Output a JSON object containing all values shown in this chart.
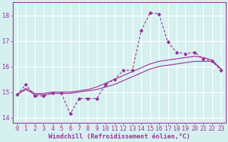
{
  "xlabel": "Windchill (Refroidissement éolien,°C)",
  "background_color": "#d6f0f0",
  "grid_color": "#ffffff",
  "line_color": "#993399",
  "xlim": [
    -0.5,
    23.5
  ],
  "ylim": [
    13.8,
    18.5
  ],
  "yticks": [
    14,
    15,
    16,
    17,
    18
  ],
  "xticks": [
    0,
    1,
    2,
    3,
    4,
    5,
    6,
    7,
    8,
    9,
    10,
    11,
    12,
    13,
    14,
    15,
    16,
    17,
    18,
    19,
    20,
    21,
    22,
    23
  ],
  "y_main": [
    14.9,
    15.3,
    14.85,
    14.85,
    14.95,
    14.95,
    14.15,
    14.75,
    14.75,
    14.75,
    15.3,
    15.5,
    15.85,
    15.85,
    17.4,
    18.1,
    18.05,
    16.95,
    16.55,
    16.5,
    16.55,
    16.3,
    16.2,
    15.85
  ],
  "y_trend1": [
    14.9,
    15.1,
    14.9,
    14.9,
    14.95,
    14.95,
    14.95,
    15.0,
    15.05,
    15.1,
    15.2,
    15.3,
    15.45,
    15.6,
    15.75,
    15.9,
    16.0,
    16.05,
    16.1,
    16.15,
    16.2,
    16.2,
    16.2,
    15.9
  ],
  "y_trend2": [
    14.9,
    15.15,
    14.95,
    14.95,
    15.0,
    15.0,
    15.0,
    15.05,
    15.1,
    15.2,
    15.35,
    15.5,
    15.65,
    15.8,
    15.95,
    16.1,
    16.2,
    16.25,
    16.3,
    16.35,
    16.4,
    16.35,
    16.25,
    15.9
  ],
  "xlabel_fontsize": 6.5,
  "tick_fontsize": 6
}
